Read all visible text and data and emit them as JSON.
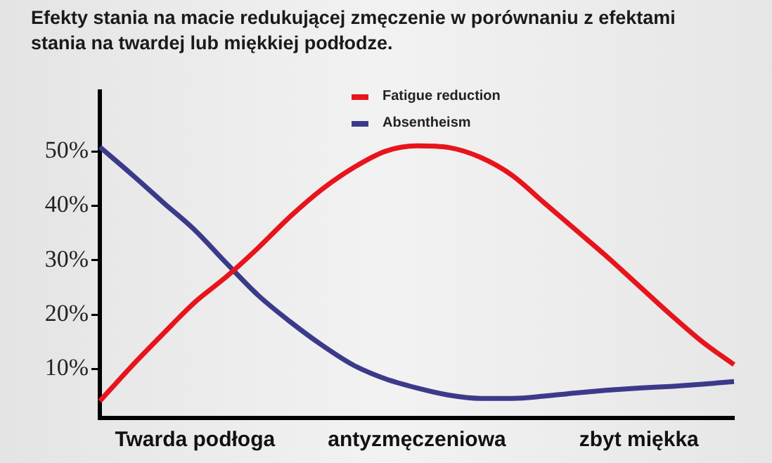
{
  "chart_data": {
    "type": "line",
    "title": "Efekty stania na macie redukującej zmęczenie w porównaniu z efektami stania na twardej lub miękkiej podłodze.",
    "categories": [
      null,
      null,
      null,
      "Twarda podłoga",
      null,
      null,
      null,
      null,
      null,
      null,
      "antyzmęczeniowa",
      null,
      null,
      null,
      null,
      null,
      null,
      "zbyt miękka",
      null,
      null,
      null
    ],
    "ylim": [
      1,
      61
    ],
    "yticks": [
      {
        "value": 10,
        "label": "10%"
      },
      {
        "value": 20,
        "label": "20%"
      },
      {
        "value": 30,
        "label": "30%"
      },
      {
        "value": 40,
        "label": "40%"
      },
      {
        "value": 50,
        "label": "50%"
      }
    ],
    "series": [
      {
        "name": "Fatigue reduction",
        "color": "#e8141b",
        "values": [
          4.1,
          10.5,
          16.5,
          22.3,
          27,
          32.3,
          38,
          43,
          47,
          50,
          51,
          50.7,
          48.9,
          45.6,
          40.6,
          35.6,
          30.6,
          25.3,
          20,
          15,
          10.8
        ]
      },
      {
        "name": "Absentheism",
        "color": "#3b3a8a",
        "values": [
          50.8,
          45.8,
          40.6,
          35.5,
          29.4,
          23.5,
          18.7,
          14.4,
          10.7,
          8.2,
          6.5,
          5.2,
          4.6,
          4.6,
          5,
          5.6,
          6.1,
          6.5,
          6.8,
          7.2,
          7.7
        ]
      }
    ],
    "legend": "top",
    "grid": false,
    "marker": "none",
    "line_style": "solid"
  }
}
